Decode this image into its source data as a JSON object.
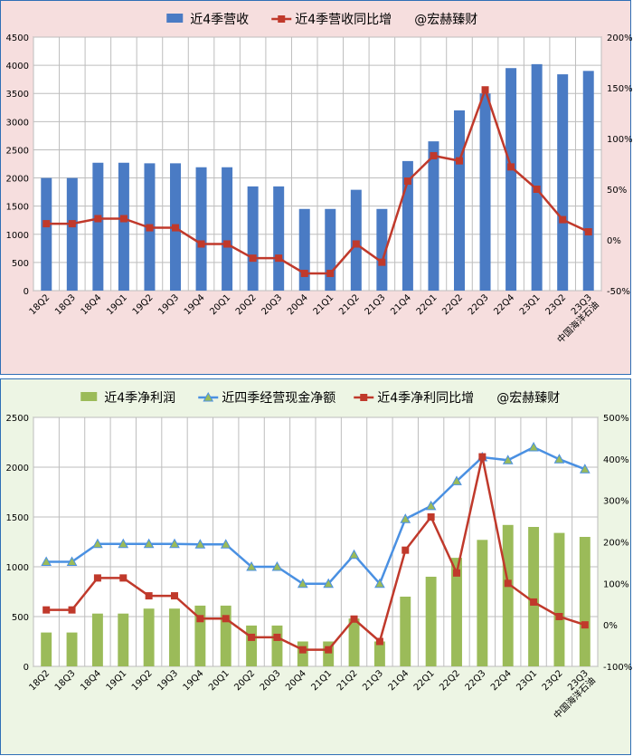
{
  "chart_data": [
    {
      "type": "bar",
      "categories": [
        "18Q2",
        "18Q3",
        "18Q4",
        "19Q1",
        "19Q2",
        "19Q3",
        "19Q4",
        "20Q1",
        "20Q2",
        "20Q3",
        "20Q4",
        "21Q1",
        "21Q2",
        "21Q3",
        "21Q4",
        "22Q1",
        "22Q2",
        "22Q3",
        "22Q4",
        "23Q1",
        "23Q2",
        "23Q3"
      ],
      "x_caption": "中国海洋石油",
      "ylim": [
        0,
        4500
      ],
      "y2lim": [
        -50,
        200
      ],
      "y_ticks": [
        "0",
        "500",
        "1000",
        "1500",
        "2000",
        "2500",
        "3000",
        "3500",
        "4000",
        "4500"
      ],
      "y2_ticks": [
        "-50%",
        "0%",
        "50%",
        "100%",
        "150%",
        "200%"
      ],
      "series": [
        {
          "name": "近4季营收",
          "kind": "bar",
          "axis": "left",
          "color": "#4a7bc4",
          "values": [
            2000,
            2000,
            2270,
            2270,
            2260,
            2260,
            2190,
            2190,
            1850,
            1850,
            1450,
            1450,
            1790,
            1450,
            2300,
            2650,
            3200,
            3500,
            3950,
            4020,
            3840,
            3900
          ]
        },
        {
          "name": "近4季营收同比增",
          "kind": "line",
          "axis": "right",
          "color": "#c0392b",
          "marker": "square",
          "values": [
            16,
            16,
            21,
            21,
            12,
            12,
            -4,
            -4,
            -18,
            -18,
            -33,
            -33,
            -4,
            -22,
            58,
            83,
            78,
            148,
            72,
            50,
            20,
            8
          ]
        }
      ],
      "watermark": "@宏赫臻财"
    },
    {
      "type": "bar",
      "categories": [
        "18Q2",
        "18Q3",
        "18Q4",
        "19Q1",
        "19Q2",
        "19Q3",
        "19Q4",
        "20Q1",
        "20Q2",
        "20Q3",
        "20Q4",
        "21Q1",
        "21Q2",
        "21Q3",
        "21Q4",
        "22Q1",
        "22Q2",
        "22Q3",
        "22Q4",
        "23Q1",
        "23Q2",
        "23Q3"
      ],
      "x_caption": "中国海洋石油",
      "ylim": [
        0,
        2500
      ],
      "y2lim": [
        -100,
        500
      ],
      "y_ticks": [
        "0",
        "500",
        "1000",
        "1500",
        "2000",
        "2500"
      ],
      "y2_ticks": [
        "-100%",
        "0%",
        "100%",
        "200%",
        "300%",
        "400%",
        "500%"
      ],
      "series": [
        {
          "name": "近4季净利润",
          "kind": "bar",
          "axis": "left",
          "color": "#9bbb59",
          "values": [
            340,
            340,
            530,
            530,
            580,
            580,
            610,
            610,
            410,
            410,
            250,
            250,
            480,
            250,
            700,
            900,
            1090,
            1270,
            1420,
            1400,
            1340,
            1300
          ]
        },
        {
          "name": "近四季经营现金净额",
          "kind": "line",
          "axis": "left",
          "color": "#4a90e2",
          "marker": "triangle",
          "values": [
            1050,
            1050,
            1230,
            1230,
            1230,
            1230,
            1225,
            1225,
            1000,
            1000,
            830,
            830,
            1120,
            830,
            1480,
            1610,
            1860,
            2100,
            2070,
            2200,
            2080,
            1980
          ]
        },
        {
          "name": "近4季净利同比增",
          "kind": "line",
          "axis": "right",
          "color": "#c0392b",
          "marker": "square",
          "values": [
            36,
            36,
            113,
            113,
            70,
            70,
            15,
            15,
            -30,
            -30,
            -60,
            -60,
            14,
            -40,
            180,
            260,
            125,
            405,
            100,
            55,
            20,
            0
          ]
        }
      ],
      "watermark": "@宏赫臻财"
    }
  ]
}
